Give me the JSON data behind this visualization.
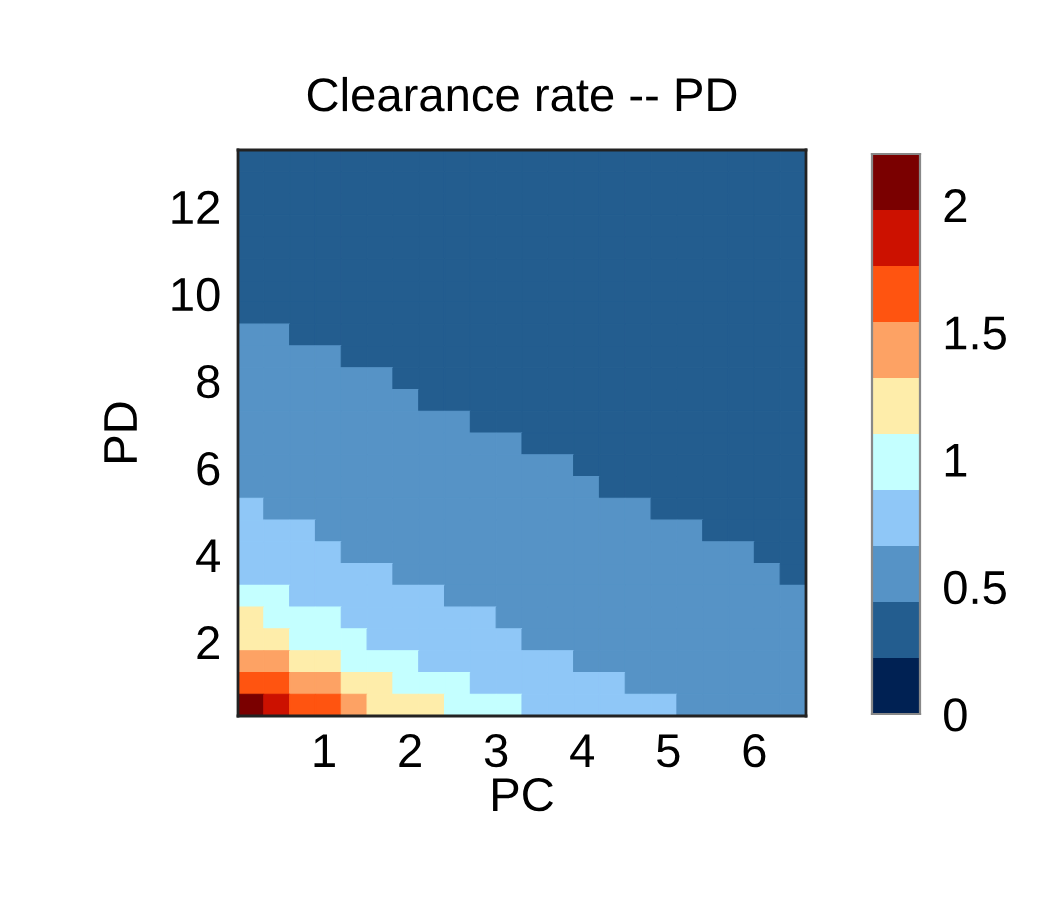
{
  "chart_data": {
    "type": "heatmap",
    "title": "Clearance rate -- PD",
    "xlabel": "PC",
    "ylabel": "PD",
    "x": [
      0.15,
      0.45,
      0.75,
      1.05,
      1.35,
      1.65,
      1.95,
      2.25,
      2.55,
      2.85,
      3.15,
      3.45,
      3.75,
      4.05,
      4.35,
      4.65,
      4.95,
      5.25,
      5.55,
      5.85,
      6.15,
      6.45
    ],
    "y": [
      13.05,
      12.55,
      12.05,
      11.55,
      11.05,
      10.55,
      10.05,
      9.55,
      9.05,
      8.55,
      8.05,
      7.55,
      7.05,
      6.55,
      6.05,
      5.55,
      5.05,
      4.55,
      4.05,
      3.55,
      3.05,
      2.55,
      2.05,
      1.55,
      1.05,
      0.55
    ],
    "xlim": [
      0,
      6.6
    ],
    "ylim": [
      0.3,
      13.3
    ],
    "xticks": [
      1,
      2,
      3,
      4,
      5,
      6
    ],
    "yticks": [
      2,
      4,
      6,
      8,
      10,
      12
    ],
    "clim": [
      0,
      2.2
    ],
    "cticks": [
      0,
      0.5,
      1,
      1.5,
      2
    ],
    "colors": [
      "#002153",
      "#235d8f",
      "#5693c6",
      "#8fc7f7",
      "#c4ffff",
      "#feedaa",
      "#fda264",
      "#ff5410",
      "#cc1100",
      "#7a0000"
    ],
    "cells": [
      [
        0.33,
        0.33,
        0.33,
        0.33,
        0.33,
        0.33,
        0.33,
        0.33,
        0.33,
        0.33,
        0.33,
        0.33,
        0.33,
        0.33,
        0.33,
        0.33,
        0.33,
        0.33,
        0.33,
        0.33,
        0.33,
        0.33
      ],
      [
        0.33,
        0.33,
        0.33,
        0.33,
        0.33,
        0.33,
        0.33,
        0.33,
        0.33,
        0.33,
        0.33,
        0.33,
        0.33,
        0.33,
        0.33,
        0.33,
        0.33,
        0.33,
        0.33,
        0.33,
        0.33,
        0.33
      ],
      [
        0.33,
        0.33,
        0.33,
        0.33,
        0.33,
        0.33,
        0.33,
        0.33,
        0.33,
        0.33,
        0.33,
        0.33,
        0.33,
        0.33,
        0.33,
        0.33,
        0.33,
        0.33,
        0.33,
        0.33,
        0.33,
        0.33
      ],
      [
        0.33,
        0.33,
        0.33,
        0.33,
        0.33,
        0.33,
        0.33,
        0.33,
        0.33,
        0.33,
        0.33,
        0.33,
        0.33,
        0.33,
        0.33,
        0.33,
        0.33,
        0.33,
        0.33,
        0.33,
        0.33,
        0.33
      ],
      [
        0.33,
        0.33,
        0.33,
        0.33,
        0.33,
        0.33,
        0.33,
        0.33,
        0.33,
        0.33,
        0.33,
        0.33,
        0.33,
        0.33,
        0.33,
        0.33,
        0.33,
        0.33,
        0.33,
        0.33,
        0.33,
        0.33
      ],
      [
        0.33,
        0.33,
        0.33,
        0.33,
        0.33,
        0.33,
        0.33,
        0.33,
        0.33,
        0.33,
        0.33,
        0.33,
        0.33,
        0.33,
        0.33,
        0.33,
        0.33,
        0.33,
        0.33,
        0.33,
        0.33,
        0.33
      ],
      [
        0.33,
        0.33,
        0.33,
        0.33,
        0.33,
        0.33,
        0.33,
        0.33,
        0.33,
        0.33,
        0.33,
        0.33,
        0.33,
        0.33,
        0.33,
        0.33,
        0.33,
        0.33,
        0.33,
        0.33,
        0.33,
        0.33
      ],
      [
        0.33,
        0.33,
        0.33,
        0.33,
        0.33,
        0.33,
        0.33,
        0.33,
        0.33,
        0.33,
        0.33,
        0.33,
        0.33,
        0.33,
        0.33,
        0.33,
        0.33,
        0.33,
        0.33,
        0.33,
        0.33,
        0.33
      ],
      [
        0.55,
        0.55,
        0.33,
        0.33,
        0.33,
        0.33,
        0.33,
        0.33,
        0.33,
        0.33,
        0.33,
        0.33,
        0.33,
        0.33,
        0.33,
        0.33,
        0.33,
        0.33,
        0.33,
        0.33,
        0.33,
        0.33
      ],
      [
        0.55,
        0.55,
        0.55,
        0.55,
        0.33,
        0.33,
        0.33,
        0.33,
        0.33,
        0.33,
        0.33,
        0.33,
        0.33,
        0.33,
        0.33,
        0.33,
        0.33,
        0.33,
        0.33,
        0.33,
        0.33,
        0.33
      ],
      [
        0.55,
        0.55,
        0.55,
        0.55,
        0.55,
        0.55,
        0.33,
        0.33,
        0.33,
        0.33,
        0.33,
        0.33,
        0.33,
        0.33,
        0.33,
        0.33,
        0.33,
        0.33,
        0.33,
        0.33,
        0.33,
        0.33
      ],
      [
        0.55,
        0.55,
        0.55,
        0.55,
        0.55,
        0.55,
        0.55,
        0.33,
        0.33,
        0.33,
        0.33,
        0.33,
        0.33,
        0.33,
        0.33,
        0.33,
        0.33,
        0.33,
        0.33,
        0.33,
        0.33,
        0.33
      ],
      [
        0.55,
        0.55,
        0.55,
        0.55,
        0.55,
        0.55,
        0.55,
        0.55,
        0.55,
        0.33,
        0.33,
        0.33,
        0.33,
        0.33,
        0.33,
        0.33,
        0.33,
        0.33,
        0.33,
        0.33,
        0.33,
        0.33
      ],
      [
        0.55,
        0.55,
        0.55,
        0.55,
        0.55,
        0.55,
        0.55,
        0.55,
        0.55,
        0.55,
        0.55,
        0.33,
        0.33,
        0.33,
        0.33,
        0.33,
        0.33,
        0.33,
        0.33,
        0.33,
        0.33,
        0.33
      ],
      [
        0.55,
        0.55,
        0.55,
        0.55,
        0.55,
        0.55,
        0.55,
        0.55,
        0.55,
        0.55,
        0.55,
        0.55,
        0.55,
        0.33,
        0.33,
        0.33,
        0.33,
        0.33,
        0.33,
        0.33,
        0.33,
        0.33
      ],
      [
        0.55,
        0.55,
        0.55,
        0.55,
        0.55,
        0.55,
        0.55,
        0.55,
        0.55,
        0.55,
        0.55,
        0.55,
        0.55,
        0.55,
        0.33,
        0.33,
        0.33,
        0.33,
        0.33,
        0.33,
        0.33,
        0.33
      ],
      [
        0.77,
        0.55,
        0.55,
        0.55,
        0.55,
        0.55,
        0.55,
        0.55,
        0.55,
        0.55,
        0.55,
        0.55,
        0.55,
        0.55,
        0.55,
        0.55,
        0.33,
        0.33,
        0.33,
        0.33,
        0.33,
        0.33
      ],
      [
        0.77,
        0.77,
        0.77,
        0.55,
        0.55,
        0.55,
        0.55,
        0.55,
        0.55,
        0.55,
        0.55,
        0.55,
        0.55,
        0.55,
        0.55,
        0.55,
        0.55,
        0.55,
        0.33,
        0.33,
        0.33,
        0.33
      ],
      [
        0.77,
        0.77,
        0.77,
        0.77,
        0.55,
        0.55,
        0.55,
        0.55,
        0.55,
        0.55,
        0.55,
        0.55,
        0.55,
        0.55,
        0.55,
        0.55,
        0.55,
        0.55,
        0.55,
        0.55,
        0.33,
        0.33
      ],
      [
        0.77,
        0.77,
        0.77,
        0.77,
        0.77,
        0.77,
        0.55,
        0.55,
        0.55,
        0.55,
        0.55,
        0.55,
        0.55,
        0.55,
        0.55,
        0.55,
        0.55,
        0.55,
        0.55,
        0.55,
        0.55,
        0.33
      ],
      [
        0.99,
        0.99,
        0.77,
        0.77,
        0.77,
        0.77,
        0.77,
        0.77,
        0.55,
        0.55,
        0.55,
        0.55,
        0.55,
        0.55,
        0.55,
        0.55,
        0.55,
        0.55,
        0.55,
        0.55,
        0.55,
        0.55
      ],
      [
        1.21,
        0.99,
        0.99,
        0.99,
        0.77,
        0.77,
        0.77,
        0.77,
        0.77,
        0.77,
        0.55,
        0.55,
        0.55,
        0.55,
        0.55,
        0.55,
        0.55,
        0.55,
        0.55,
        0.55,
        0.55,
        0.55
      ],
      [
        1.21,
        1.21,
        0.99,
        0.99,
        0.99,
        0.77,
        0.77,
        0.77,
        0.77,
        0.77,
        0.77,
        0.55,
        0.55,
        0.55,
        0.55,
        0.55,
        0.55,
        0.55,
        0.55,
        0.55,
        0.55,
        0.55
      ],
      [
        1.43,
        1.43,
        1.21,
        1.21,
        0.99,
        0.99,
        0.99,
        0.77,
        0.77,
        0.77,
        0.77,
        0.77,
        0.77,
        0.55,
        0.55,
        0.55,
        0.55,
        0.55,
        0.55,
        0.55,
        0.55,
        0.55
      ],
      [
        1.65,
        1.65,
        1.43,
        1.43,
        1.21,
        1.21,
        0.99,
        0.99,
        0.99,
        0.77,
        0.77,
        0.77,
        0.77,
        0.77,
        0.77,
        0.55,
        0.55,
        0.55,
        0.55,
        0.55,
        0.55,
        0.55
      ],
      [
        2.09,
        1.87,
        1.65,
        1.65,
        1.43,
        1.21,
        1.21,
        1.21,
        0.99,
        0.99,
        0.99,
        0.77,
        0.77,
        0.77,
        0.77,
        0.77,
        0.77,
        0.55,
        0.55,
        0.55,
        0.55,
        0.55
      ]
    ]
  }
}
